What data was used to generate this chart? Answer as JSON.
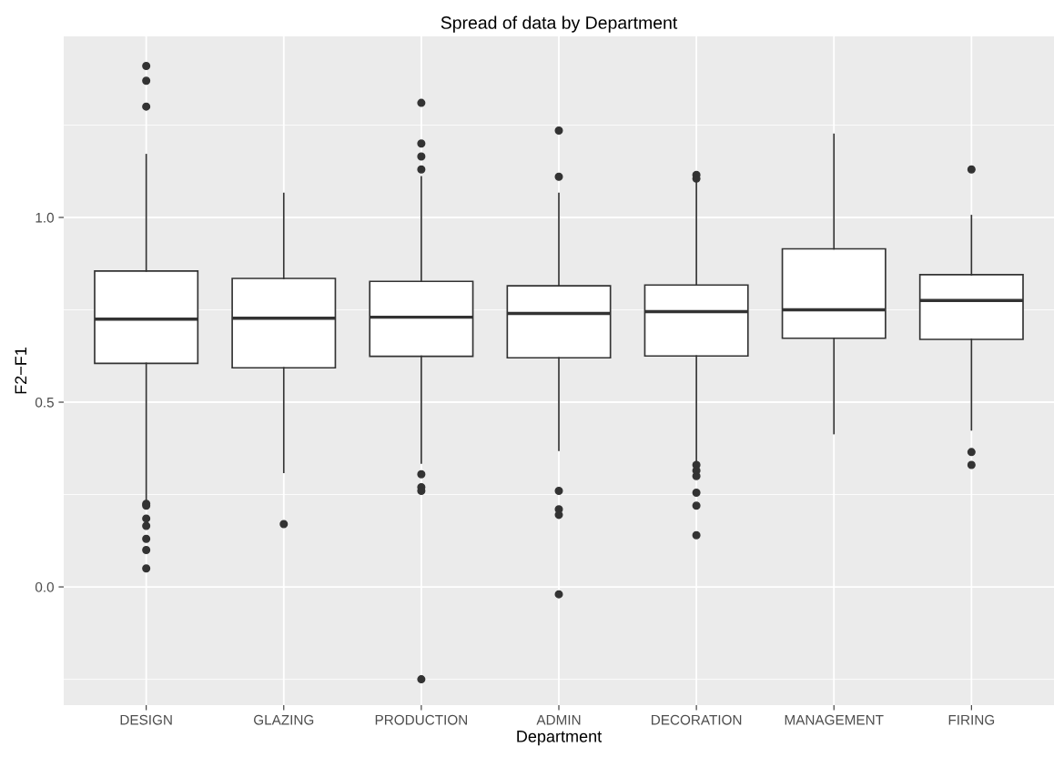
{
  "chart_data": {
    "type": "box",
    "title": "Spread of data by Department",
    "xlabel": "Department",
    "ylabel": "F2−F1",
    "categories": [
      "DESIGN",
      "GLAZING",
      "PRODUCTION",
      "ADMIN",
      "DECORATION",
      "MANAGEMENT",
      "FIRING"
    ],
    "boxes": [
      {
        "low": 0.235,
        "q1": 0.605,
        "median": 0.725,
        "q3": 0.855,
        "high": 1.17,
        "outliers": [
          1.41,
          1.37,
          1.3,
          0.225,
          0.22,
          0.185,
          0.165,
          0.13,
          0.1,
          0.05
        ]
      },
      {
        "low": 0.31,
        "q1": 0.593,
        "median": 0.727,
        "q3": 0.835,
        "high": 1.065,
        "outliers": [
          0.17
        ]
      },
      {
        "low": 0.335,
        "q1": 0.624,
        "median": 0.73,
        "q3": 0.827,
        "high": 1.11,
        "outliers": [
          1.31,
          1.2,
          1.165,
          1.13,
          0.305,
          0.27,
          0.26,
          -0.25
        ]
      },
      {
        "low": 0.37,
        "q1": 0.62,
        "median": 0.74,
        "q3": 0.815,
        "high": 1.065,
        "outliers": [
          1.235,
          1.11,
          0.26,
          0.21,
          0.195,
          -0.02
        ]
      },
      {
        "low": 0.33,
        "q1": 0.625,
        "median": 0.745,
        "q3": 0.817,
        "high": 1.1,
        "outliers": [
          1.115,
          1.105,
          0.33,
          0.315,
          0.3,
          0.255,
          0.22,
          0.14
        ]
      },
      {
        "low": 0.415,
        "q1": 0.673,
        "median": 0.75,
        "q3": 0.915,
        "high": 1.225
      },
      {
        "low": 0.425,
        "q1": 0.67,
        "median": 0.775,
        "q3": 0.845,
        "high": 1.005,
        "outliers": [
          1.13,
          0.365,
          0.33
        ]
      }
    ],
    "ylim": [
      -0.32,
      1.49
    ],
    "yticks": [
      {
        "value": -0.25,
        "label": null
      },
      {
        "value": 0.0,
        "label": "0.0"
      },
      {
        "value": 0.25,
        "label": null
      },
      0.5,
      {
        "value": 0.75,
        "label": null
      },
      {
        "value": 1.0,
        "label": "1.0"
      },
      {
        "value": 1.25,
        "label": null
      }
    ],
    "grid": true
  }
}
